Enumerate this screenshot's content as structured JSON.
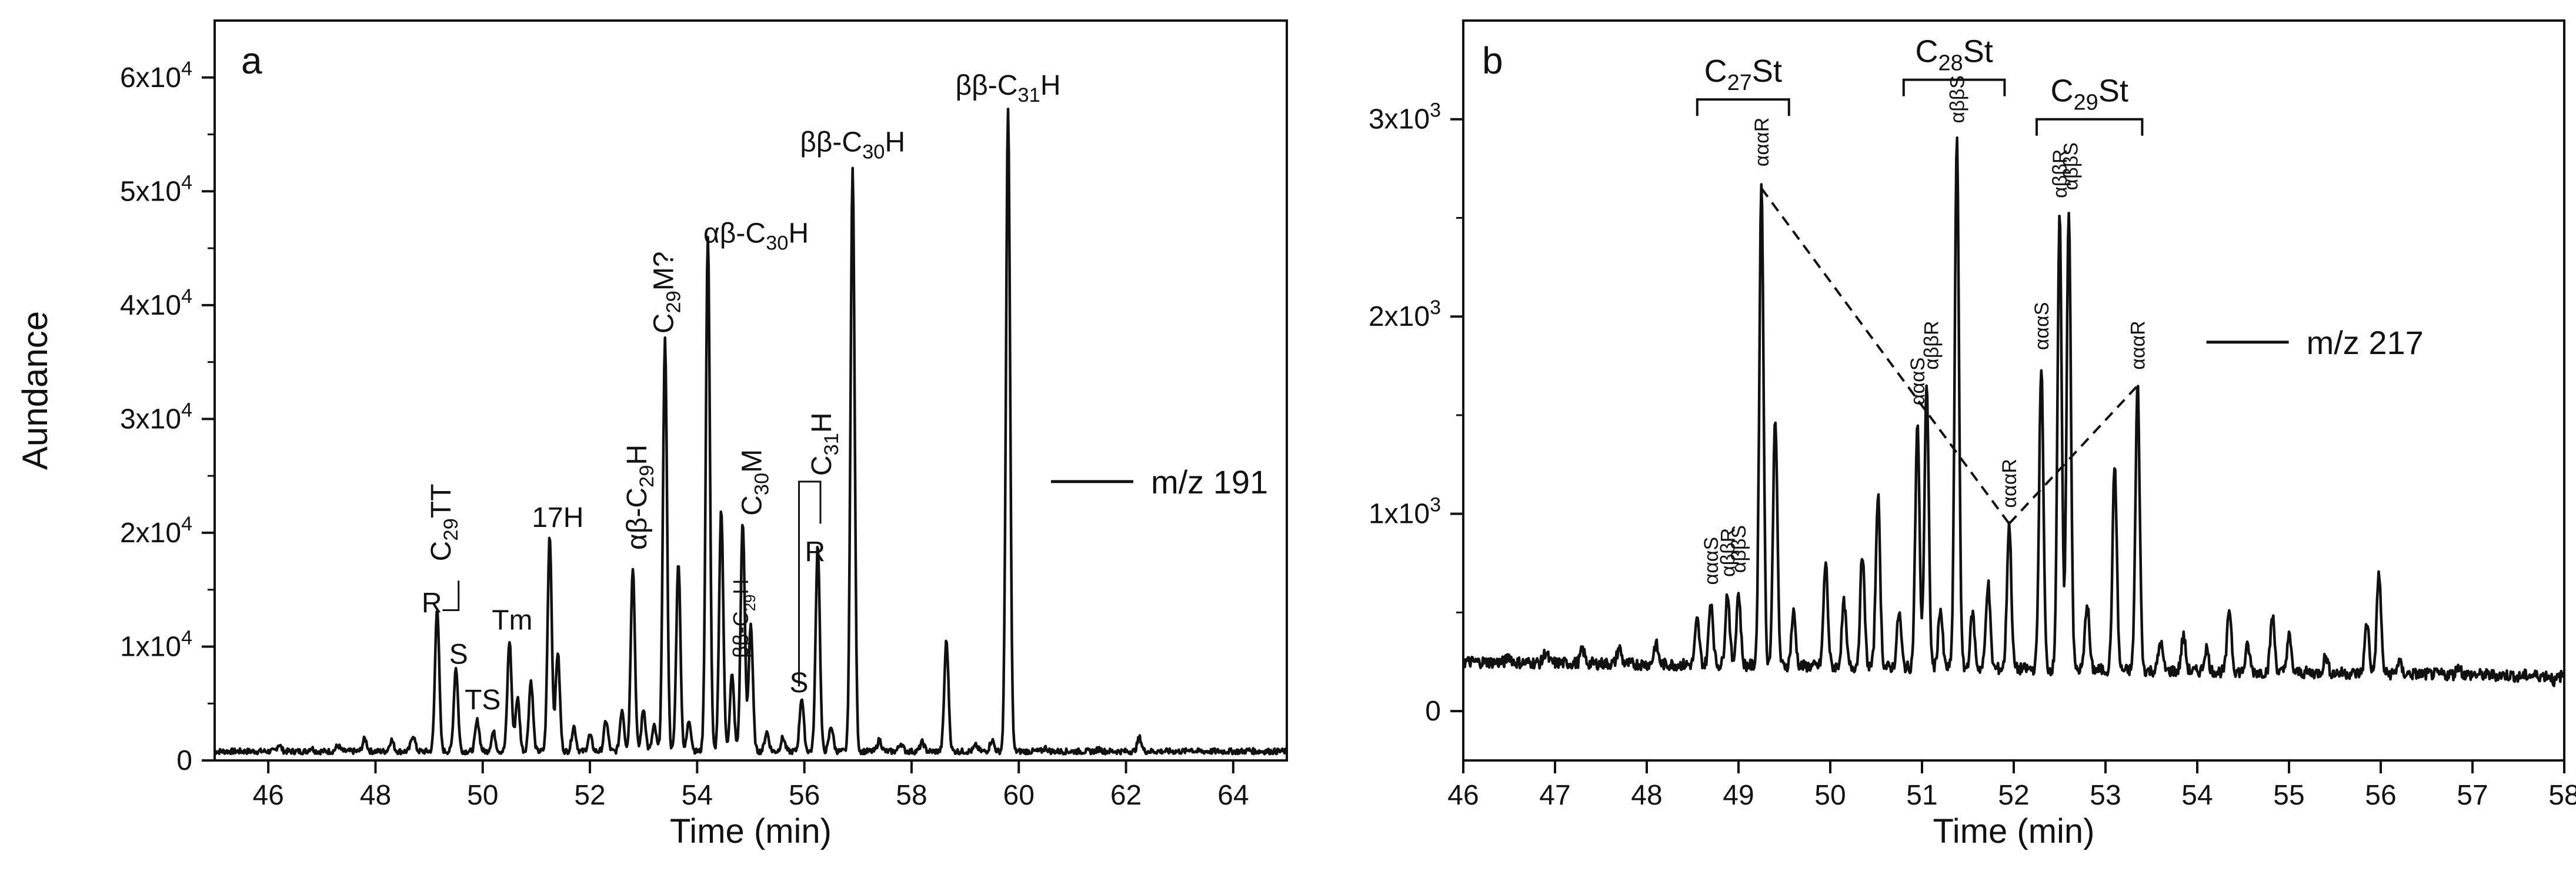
{
  "chart_data": [
    {
      "panel": "a",
      "type": "line",
      "title": "",
      "xlabel": "Time (min)",
      "ylabel": "Aundance",
      "xlim": [
        45,
        65
      ],
      "ylim": [
        0,
        65000
      ],
      "x_ticks": [
        46,
        48,
        50,
        52,
        54,
        56,
        58,
        60,
        62,
        64
      ],
      "x_tick_labels": [
        "46",
        "48",
        "50",
        "52",
        "54",
        "56",
        "58",
        "60",
        "62",
        "64"
      ],
      "y_ticks": [
        0,
        10000,
        20000,
        30000,
        40000,
        50000,
        60000
      ],
      "y_tick_labels": [
        {
          "base": "0",
          "exp": ""
        },
        {
          "base": "1x10",
          "exp": "4"
        },
        {
          "base": "2x10",
          "exp": "4"
        },
        {
          "base": "3x10",
          "exp": "4"
        },
        {
          "base": "4x10",
          "exp": "4"
        },
        {
          "base": "5x10",
          "exp": "4"
        },
        {
          "base": "6x10",
          "exp": "4"
        }
      ],
      "legend": {
        "label": "m/z 191",
        "placement": "right"
      },
      "baseline": 800,
      "peaks": [
        {
          "x": 46.2,
          "y": 1400
        },
        {
          "x": 46.8,
          "y": 1100
        },
        {
          "x": 47.3,
          "y": 1300
        },
        {
          "x": 47.8,
          "y": 1900
        },
        {
          "x": 48.3,
          "y": 1800
        },
        {
          "x": 48.7,
          "y": 2200
        },
        {
          "x": 49.15,
          "y": 13500
        },
        {
          "x": 49.5,
          "y": 8200
        },
        {
          "x": 49.9,
          "y": 3500
        },
        {
          "x": 50.2,
          "y": 2500
        },
        {
          "x": 50.5,
          "y": 10500
        },
        {
          "x": 50.65,
          "y": 5500
        },
        {
          "x": 50.9,
          "y": 7000
        },
        {
          "x": 51.25,
          "y": 19800
        },
        {
          "x": 51.4,
          "y": 9500
        },
        {
          "x": 51.7,
          "y": 3000
        },
        {
          "x": 52.0,
          "y": 2200
        },
        {
          "x": 52.3,
          "y": 3500
        },
        {
          "x": 52.6,
          "y": 4500
        },
        {
          "x": 52.8,
          "y": 17000
        },
        {
          "x": 53.0,
          "y": 4500
        },
        {
          "x": 53.2,
          "y": 3000
        },
        {
          "x": 53.4,
          "y": 37000
        },
        {
          "x": 53.65,
          "y": 17500
        },
        {
          "x": 53.85,
          "y": 3500
        },
        {
          "x": 54.2,
          "y": 46000
        },
        {
          "x": 54.45,
          "y": 22000
        },
        {
          "x": 54.65,
          "y": 7500
        },
        {
          "x": 54.85,
          "y": 21000
        },
        {
          "x": 55.0,
          "y": 12000
        },
        {
          "x": 55.3,
          "y": 2500
        },
        {
          "x": 55.6,
          "y": 2000
        },
        {
          "x": 55.95,
          "y": 5500
        },
        {
          "x": 56.25,
          "y": 19000
        },
        {
          "x": 56.5,
          "y": 3000
        },
        {
          "x": 56.9,
          "y": 52000
        },
        {
          "x": 57.4,
          "y": 1800
        },
        {
          "x": 57.8,
          "y": 1500
        },
        {
          "x": 58.2,
          "y": 1600
        },
        {
          "x": 58.65,
          "y": 10500
        },
        {
          "x": 59.2,
          "y": 1300
        },
        {
          "x": 59.5,
          "y": 1800
        },
        {
          "x": 59.8,
          "y": 57000
        },
        {
          "x": 60.5,
          "y": 1100
        },
        {
          "x": 61.5,
          "y": 1000
        },
        {
          "x": 62.25,
          "y": 2000
        },
        {
          "x": 63.2,
          "y": 1000
        },
        {
          "x": 64.3,
          "y": 900
        }
      ],
      "annotations": [
        {
          "x": 49.4,
          "y": 17500,
          "base": "C",
          "sub": "29",
          "tail": "TT",
          "rotate": -90
        },
        {
          "x": 49.05,
          "y": 13000,
          "text": "R"
        },
        {
          "x": 49.55,
          "y": 8500,
          "text": "S"
        },
        {
          "x": 50.0,
          "y": 4500,
          "text": "TS"
        },
        {
          "x": 50.55,
          "y": 11500,
          "text": "Tm"
        },
        {
          "x": 51.4,
          "y": 20500,
          "text": "17H"
        },
        {
          "x": 53.05,
          "y": 18500,
          "pre": "αβ-C",
          "sub": "29",
          "tail": "H",
          "rotate": -90
        },
        {
          "x": 53.55,
          "y": 37500,
          "base": "C",
          "sub": "29",
          "tail": "M?",
          "rotate": -90
        },
        {
          "x": 55.1,
          "y": 45500,
          "pre": "αβ-C",
          "sub": "30",
          "tail": "H"
        },
        {
          "x": 55.2,
          "y": 21500,
          "base": "C",
          "sub": "30",
          "tail": "M",
          "rotate": -90
        },
        {
          "x": 54.95,
          "y": 9000,
          "pre": "ββ-C",
          "sub": "29",
          "tail": "H",
          "rotate": -90,
          "small": true
        },
        {
          "x": 56.5,
          "y": 25000,
          "base": "C",
          "sub": "31",
          "tail": "H",
          "rotate": -90
        },
        {
          "x": 56.2,
          "y": 17500,
          "text": "R"
        },
        {
          "x": 55.9,
          "y": 6000,
          "text": "S"
        },
        {
          "x": 56.9,
          "y": 53500,
          "pre": "ββ-C",
          "sub": "30",
          "tail": "H"
        },
        {
          "x": 59.8,
          "y": 58500,
          "pre": "ββ-C",
          "sub": "31",
          "tail": "H"
        }
      ]
    },
    {
      "panel": "b",
      "type": "line",
      "title": "",
      "xlabel": "Time (min)",
      "ylabel": "",
      "xlim": [
        46,
        58
      ],
      "ylim": [
        -250,
        3500
      ],
      "x_ticks": [
        46,
        47,
        48,
        49,
        50,
        51,
        52,
        53,
        54,
        55,
        56,
        57,
        58
      ],
      "x_tick_labels": [
        "46",
        "47",
        "48",
        "49",
        "50",
        "51",
        "52",
        "53",
        "54",
        "55",
        "56",
        "57",
        "58"
      ],
      "y_ticks": [
        0,
        1000,
        2000,
        3000
      ],
      "y_tick_labels": [
        {
          "base": "0",
          "exp": ""
        },
        {
          "base": "1x10",
          "exp": "3"
        },
        {
          "base": "2x10",
          "exp": "3"
        },
        {
          "base": "3x10",
          "exp": "3"
        }
      ],
      "legend": {
        "label": "m/z 217",
        "placement": "right"
      },
      "baseline": 230,
      "peaks": [
        {
          "x": 46.5,
          "y": 280
        },
        {
          "x": 46.9,
          "y": 300
        },
        {
          "x": 47.3,
          "y": 310
        },
        {
          "x": 47.7,
          "y": 320
        },
        {
          "x": 48.1,
          "y": 340
        },
        {
          "x": 48.55,
          "y": 460
        },
        {
          "x": 48.7,
          "y": 560
        },
        {
          "x": 48.88,
          "y": 600
        },
        {
          "x": 49.0,
          "y": 600
        },
        {
          "x": 49.25,
          "y": 2680
        },
        {
          "x": 49.4,
          "y": 1500
        },
        {
          "x": 49.6,
          "y": 500
        },
        {
          "x": 49.95,
          "y": 750
        },
        {
          "x": 50.15,
          "y": 550
        },
        {
          "x": 50.35,
          "y": 800
        },
        {
          "x": 50.52,
          "y": 1100
        },
        {
          "x": 50.75,
          "y": 500
        },
        {
          "x": 50.95,
          "y": 1450
        },
        {
          "x": 51.05,
          "y": 1650
        },
        {
          "x": 51.2,
          "y": 520
        },
        {
          "x": 51.38,
          "y": 2900
        },
        {
          "x": 51.55,
          "y": 500
        },
        {
          "x": 51.72,
          "y": 650
        },
        {
          "x": 51.95,
          "y": 950
        },
        {
          "x": 52.3,
          "y": 1750
        },
        {
          "x": 52.5,
          "y": 2500
        },
        {
          "x": 52.6,
          "y": 2550
        },
        {
          "x": 52.8,
          "y": 550
        },
        {
          "x": 53.1,
          "y": 1250
        },
        {
          "x": 53.35,
          "y": 1650
        },
        {
          "x": 53.6,
          "y": 350
        },
        {
          "x": 53.85,
          "y": 380
        },
        {
          "x": 54.1,
          "y": 320
        },
        {
          "x": 54.35,
          "y": 520
        },
        {
          "x": 54.55,
          "y": 330
        },
        {
          "x": 54.82,
          "y": 480
        },
        {
          "x": 55.0,
          "y": 380
        },
        {
          "x": 55.4,
          "y": 280
        },
        {
          "x": 55.85,
          "y": 450
        },
        {
          "x": 55.98,
          "y": 700
        },
        {
          "x": 56.2,
          "y": 250
        },
        {
          "x": 56.85,
          "y": 230
        },
        {
          "x": 57.5,
          "y": 170
        },
        {
          "x": 57.9,
          "y": 150
        }
      ],
      "group_brackets": [
        {
          "base": "C",
          "sub": "27",
          "tail": "St",
          "x1": 48.55,
          "x2": 49.55,
          "y": 3100
        },
        {
          "base": "C",
          "sub": "28",
          "tail": "St",
          "x1": 50.8,
          "x2": 51.9,
          "y": 3200
        },
        {
          "base": "C",
          "sub": "29",
          "tail": "St",
          "x1": 52.25,
          "x2": 53.4,
          "y": 3000
        }
      ],
      "peak_labels": [
        {
          "x": 48.7,
          "y": 640,
          "text": "αααS"
        },
        {
          "x": 48.88,
          "y": 680,
          "text": "αββR"
        },
        {
          "x": 49.0,
          "y": 700,
          "text": "αββS"
        },
        {
          "x": 49.25,
          "y": 2760,
          "text": "αααR"
        },
        {
          "x": 50.95,
          "y": 1550,
          "text": "αααS"
        },
        {
          "x": 51.1,
          "y": 1730,
          "text": "αββR"
        },
        {
          "x": 51.38,
          "y": 2980,
          "text": "αββS"
        },
        {
          "x": 51.95,
          "y": 1030,
          "text": "αααR"
        },
        {
          "x": 52.3,
          "y": 1830,
          "text": "αααS"
        },
        {
          "x": 52.5,
          "y": 2600,
          "text": "αββR"
        },
        {
          "x": 52.62,
          "y": 2640,
          "text": "αββS"
        },
        {
          "x": 53.35,
          "y": 1730,
          "text": "αααR"
        }
      ],
      "dashed_lines": [
        {
          "x1": 49.25,
          "y1": 2650,
          "x2": 51.95,
          "y2": 950
        },
        {
          "x1": 51.95,
          "y1": 950,
          "x2": 53.35,
          "y2": 1650
        }
      ]
    }
  ]
}
